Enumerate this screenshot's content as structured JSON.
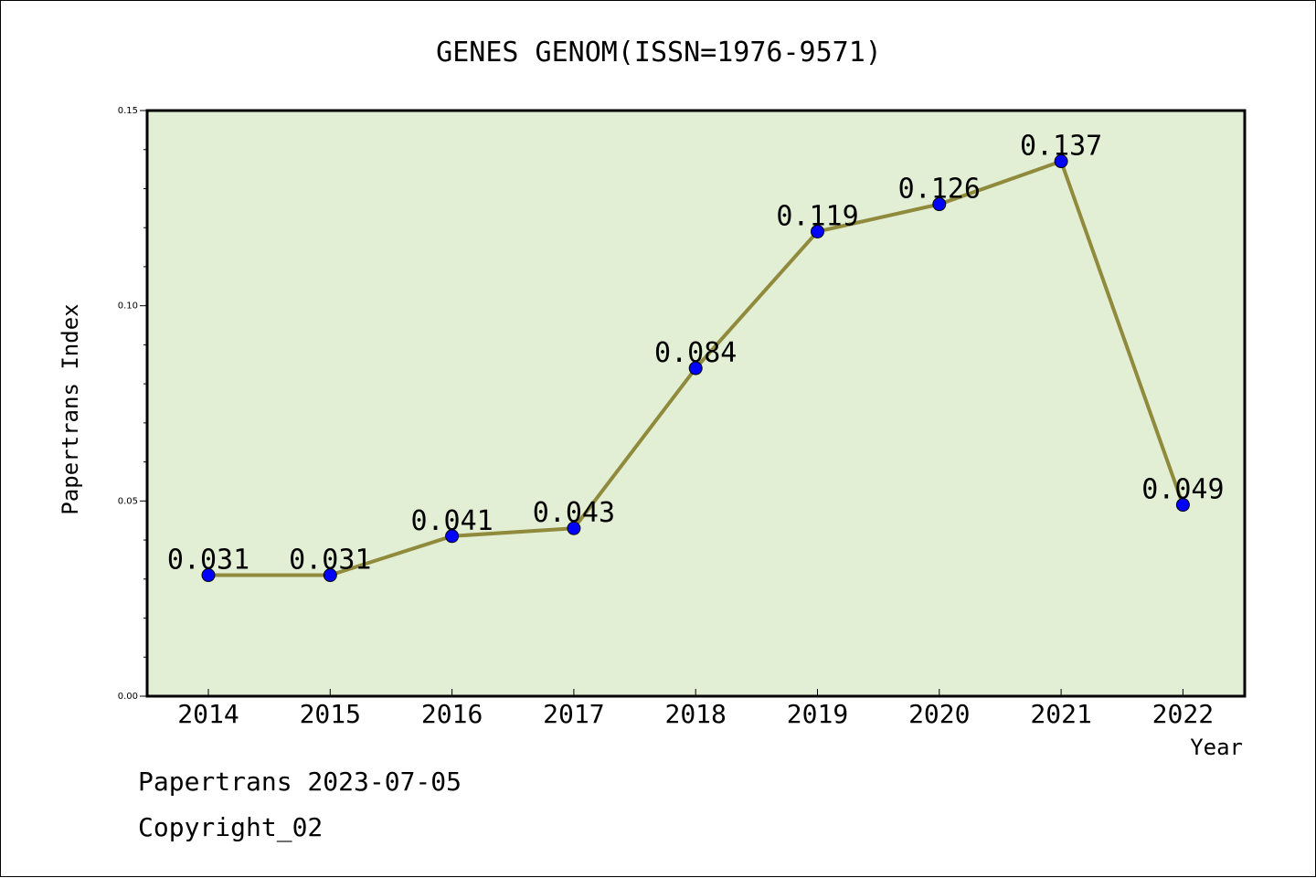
{
  "chart_data": {
    "type": "line",
    "title": "GENES GENOM(ISSN=1976-9571)",
    "xlabel": "Year",
    "ylabel": "Papertrans Index",
    "categories": [
      "2014",
      "2015",
      "2016",
      "2017",
      "2018",
      "2019",
      "2020",
      "2021",
      "2022"
    ],
    "series": [
      {
        "values": [
          0.031,
          0.031,
          0.041,
          0.043,
          0.084,
          0.119,
          0.126,
          0.137,
          0.049
        ],
        "labels": [
          "0.031",
          "0.031",
          "0.041",
          "0.043",
          "0.084",
          "0.119",
          "0.126",
          "0.137",
          "0.049"
        ]
      }
    ],
    "ylim": [
      0,
      0.15
    ],
    "yticks": [
      "0.00",
      "0.05",
      "0.10",
      "0.15"
    ],
    "grid": false,
    "plot_background": "#e2efd4",
    "line_color": "#8f8a3c",
    "marker_color": "#0000ff"
  },
  "footer": {
    "line1": "Papertrans 2023-07-05",
    "line2": "Copyright_02"
  }
}
